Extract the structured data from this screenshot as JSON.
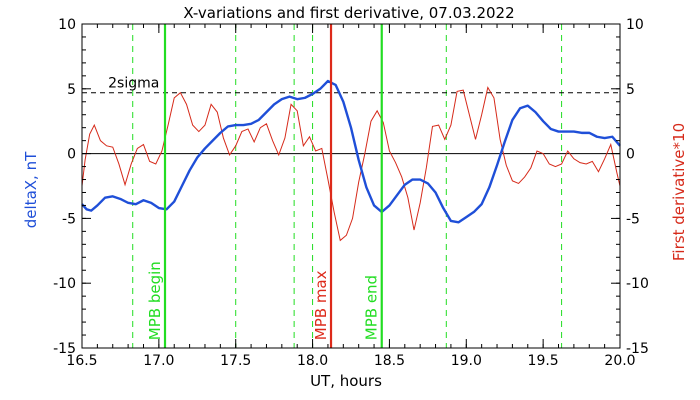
{
  "chart_data": {
    "type": "line",
    "title": "X-variations and first derivative, 07.03.2022",
    "xlabel": "UT, hours",
    "ylabel_left": "deltaX, nT",
    "ylabel_right": "First derivative*10",
    "xlim": [
      16.5,
      20.0
    ],
    "ylim": [
      -15,
      10
    ],
    "x_ticks": [
      16.5,
      17.0,
      17.5,
      18.0,
      18.5,
      19.0,
      19.5,
      20.0
    ],
    "x_tick_labels": [
      "16.5",
      "17.0",
      "17.5",
      "18.0",
      "18.5",
      "19.0",
      "19.5",
      "20.0"
    ],
    "y_ticks": [
      -15,
      -10,
      -5,
      0,
      5,
      10
    ],
    "y_tick_labels": [
      "-15",
      "-10",
      "-5",
      "0",
      "5",
      "10"
    ],
    "colors": {
      "deltaX": "#1f4fd8",
      "derivative": "#d62a1a",
      "event_green": "#22dd22",
      "event_red": "#dd2a1a",
      "threshold": "#000000"
    },
    "threshold": {
      "label": "2sigma",
      "y": 4.7
    },
    "zero_line": 0,
    "events": [
      {
        "label": "MPB begin",
        "x": 17.04,
        "color_key": "event_green"
      },
      {
        "label": "MPB max",
        "x": 18.12,
        "color_key": "event_red"
      },
      {
        "label": "MPB end",
        "x": 18.45,
        "color_key": "event_green"
      }
    ],
    "dashed_verticals": [
      16.83,
      17.5,
      17.88,
      18.0,
      18.87,
      19.62
    ],
    "series": [
      {
        "key": "deltaX",
        "x": [
          16.5,
          16.53,
          16.56,
          16.6,
          16.65,
          16.7,
          16.75,
          16.8,
          16.85,
          16.9,
          16.95,
          17.0,
          17.05,
          17.1,
          17.15,
          17.2,
          17.25,
          17.3,
          17.35,
          17.4,
          17.45,
          17.5,
          17.55,
          17.6,
          17.65,
          17.7,
          17.75,
          17.8,
          17.85,
          17.9,
          17.95,
          18.0,
          18.05,
          18.1,
          18.15,
          18.2,
          18.25,
          18.3,
          18.35,
          18.4,
          18.45,
          18.5,
          18.55,
          18.6,
          18.65,
          18.7,
          18.75,
          18.8,
          18.85,
          18.9,
          18.95,
          19.0,
          19.05,
          19.1,
          19.15,
          19.2,
          19.25,
          19.3,
          19.35,
          19.4,
          19.45,
          19.5,
          19.55,
          19.6,
          19.65,
          19.7,
          19.75,
          19.8,
          19.85,
          19.9,
          19.95,
          20.0
        ],
        "y": [
          -3.9,
          -4.3,
          -4.4,
          -4.0,
          -3.4,
          -3.3,
          -3.5,
          -3.8,
          -3.9,
          -3.6,
          -3.8,
          -4.2,
          -4.3,
          -3.7,
          -2.5,
          -1.3,
          -0.3,
          0.4,
          1.0,
          1.6,
          2.1,
          2.2,
          2.2,
          2.3,
          2.6,
          3.2,
          3.8,
          4.2,
          4.4,
          4.2,
          4.3,
          4.6,
          5.0,
          5.6,
          5.3,
          4.0,
          2.0,
          -0.5,
          -2.6,
          -4.0,
          -4.5,
          -4.0,
          -3.2,
          -2.4,
          -2.0,
          -2.0,
          -2.3,
          -3.0,
          -4.2,
          -5.2,
          -5.3,
          -4.9,
          -4.5,
          -3.9,
          -2.6,
          -0.9,
          0.9,
          2.6,
          3.5,
          3.7,
          3.2,
          2.5,
          1.9,
          1.7,
          1.7,
          1.7,
          1.6,
          1.6,
          1.3,
          1.2,
          1.3,
          0.6
        ]
      },
      {
        "key": "derivative",
        "x": [
          16.5,
          16.52,
          16.55,
          16.58,
          16.62,
          16.66,
          16.7,
          16.74,
          16.78,
          16.82,
          16.86,
          16.9,
          16.94,
          16.98,
          17.02,
          17.06,
          17.1,
          17.14,
          17.18,
          17.22,
          17.26,
          17.3,
          17.34,
          17.38,
          17.42,
          17.46,
          17.5,
          17.54,
          17.58,
          17.62,
          17.66,
          17.7,
          17.74,
          17.78,
          17.82,
          17.86,
          17.9,
          17.94,
          17.98,
          18.02,
          18.06,
          18.1,
          18.14,
          18.18,
          18.22,
          18.26,
          18.3,
          18.34,
          18.38,
          18.42,
          18.46,
          18.5,
          18.54,
          18.58,
          18.62,
          18.66,
          18.7,
          18.74,
          18.78,
          18.82,
          18.86,
          18.9,
          18.94,
          18.98,
          19.02,
          19.06,
          19.1,
          19.14,
          19.18,
          19.22,
          19.26,
          19.3,
          19.34,
          19.38,
          19.42,
          19.46,
          19.5,
          19.54,
          19.58,
          19.62,
          19.66,
          19.7,
          19.74,
          19.78,
          19.82,
          19.86,
          19.9,
          19.94,
          19.98,
          20.0
        ],
        "y": [
          -2.5,
          -0.5,
          1.5,
          2.2,
          1.0,
          0.6,
          0.5,
          -0.8,
          -2.4,
          -0.8,
          0.4,
          0.7,
          -0.6,
          -0.8,
          0.2,
          2.2,
          4.3,
          4.7,
          3.8,
          2.2,
          1.7,
          2.2,
          3.8,
          3.2,
          1.2,
          -0.1,
          0.6,
          1.7,
          1.9,
          0.9,
          2.0,
          2.3,
          1.0,
          -0.1,
          1.2,
          3.8,
          3.3,
          0.6,
          1.3,
          0.2,
          0.4,
          -2.0,
          -4.5,
          -6.7,
          -6.3,
          -5.0,
          -2.2,
          0.0,
          2.5,
          3.3,
          2.4,
          0.2,
          -0.7,
          -1.8,
          -3.4,
          -5.9,
          -3.8,
          -1.1,
          2.1,
          2.2,
          1.1,
          2.2,
          4.8,
          4.9,
          3.0,
          1.1,
          3.0,
          5.1,
          4.3,
          1.1,
          -0.9,
          -2.1,
          -2.3,
          -1.8,
          -1.1,
          0.2,
          0.0,
          -0.8,
          -1.0,
          -0.8,
          0.2,
          -0.4,
          -0.7,
          -0.8,
          -0.6,
          -1.4,
          -0.4,
          0.7,
          -1.5,
          -2.5
        ]
      }
    ]
  }
}
